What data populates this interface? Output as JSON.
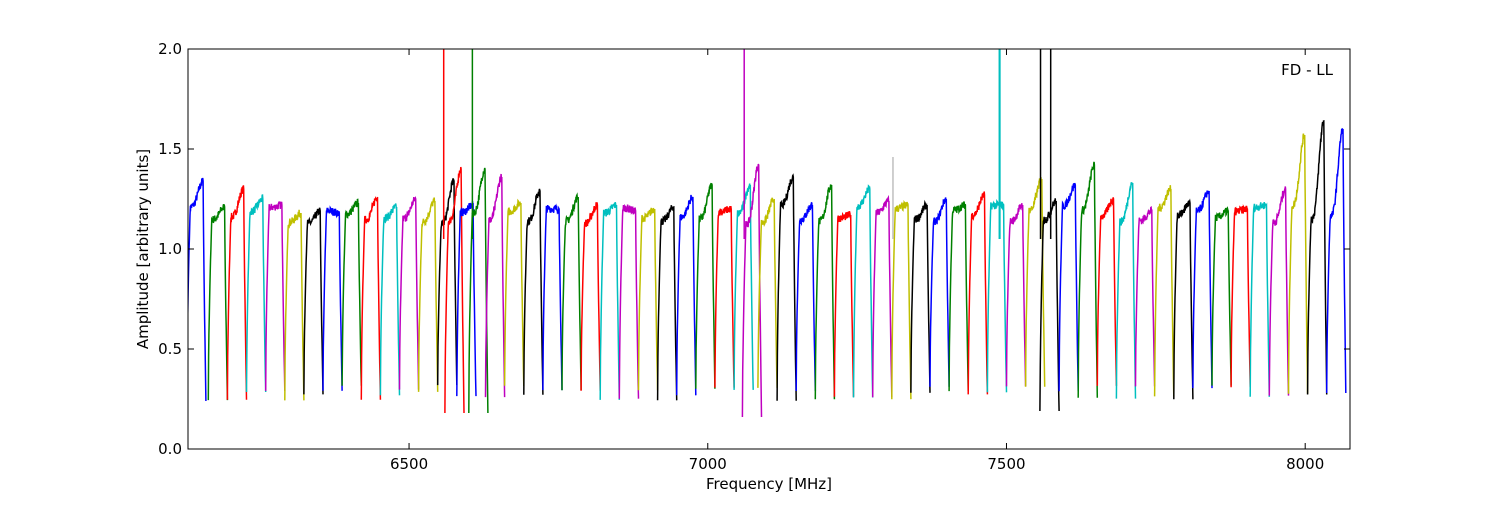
{
  "chart_data": {
    "type": "line",
    "title": "",
    "xlabel": "Frequency [MHz]",
    "ylabel": "Amplitude [arbitrary units]",
    "annotation": "FD - LL",
    "xlim": [
      6130,
      8075
    ],
    "ylim": [
      0.0,
      2.0
    ],
    "xticks": [
      6500,
      7000,
      7500,
      8000
    ],
    "xtick_labels": [
      "6500",
      "7000",
      "7500",
      "8000"
    ],
    "yticks": [
      0.0,
      0.5,
      1.0,
      1.5,
      2.0
    ],
    "ytick_labels": [
      "0.0",
      "0.5",
      "1.0",
      "1.5",
      "2.0"
    ],
    "grid": false,
    "legend": "none",
    "color_cycle": [
      "#0000ff",
      "#008000",
      "#ff0000",
      "#00bfbf",
      "#bf00bf",
      "#bfbf00",
      "#000000"
    ],
    "secondary_color": "#bfbfbf",
    "channel_width_mhz": 32,
    "channels": [
      {
        "start": 6128,
        "color": "#0000ff",
        "peak": 1.34
      },
      {
        "start": 6164,
        "color": "#008000",
        "peak": 1.21
      },
      {
        "start": 6196,
        "color": "#ff0000",
        "peak": 1.3
      },
      {
        "start": 6228,
        "color": "#00bfbf",
        "peak": 1.25
      },
      {
        "start": 6260,
        "color": "#bf00bf",
        "peak": 1.22
      },
      {
        "start": 6292,
        "color": "#bfbf00",
        "peak": 1.18
      },
      {
        "start": 6324,
        "color": "#000000",
        "peak": 1.19
      },
      {
        "start": 6356,
        "color": "#0000ff",
        "peak": 1.18
      },
      {
        "start": 6388,
        "color": "#008000",
        "peak": 1.23
      },
      {
        "start": 6420,
        "color": "#ff0000",
        "peak": 1.26
      },
      {
        "start": 6452,
        "color": "#00bfbf",
        "peak": 1.21
      },
      {
        "start": 6484,
        "color": "#bf00bf",
        "peak": 1.25
      },
      {
        "start": 6516,
        "color": "#bfbf00",
        "peak": 1.24
      },
      {
        "start": 6548,
        "color": "#000000",
        "peak": 1.34
      },
      {
        "start": 6560,
        "color": "#ff0000",
        "peak": 1.4,
        "dip": 0.18
      },
      {
        "start": 6580,
        "color": "#0000ff",
        "peak": 1.22
      },
      {
        "start": 6600,
        "color": "#008000",
        "peak": 1.4,
        "dip": 0.18
      },
      {
        "start": 6628,
        "color": "#bf00bf",
        "peak": 1.36
      },
      {
        "start": 6660,
        "color": "#bfbf00",
        "peak": 1.23
      },
      {
        "start": 6692,
        "color": "#000000",
        "peak": 1.29
      },
      {
        "start": 6724,
        "color": "#0000ff",
        "peak": 1.2
      },
      {
        "start": 6756,
        "color": "#008000",
        "peak": 1.26
      },
      {
        "start": 6788,
        "color": "#ff0000",
        "peak": 1.22
      },
      {
        "start": 6820,
        "color": "#00bfbf",
        "peak": 1.22
      },
      {
        "start": 6852,
        "color": "#bf00bf",
        "peak": 1.19
      },
      {
        "start": 6884,
        "color": "#bfbf00",
        "peak": 1.2
      },
      {
        "start": 6916,
        "color": "#000000",
        "peak": 1.21
      },
      {
        "start": 6948,
        "color": "#0000ff",
        "peak": 1.26
      },
      {
        "start": 6980,
        "color": "#008000",
        "peak": 1.32
      },
      {
        "start": 7012,
        "color": "#ff0000",
        "peak": 1.2
      },
      {
        "start": 7044,
        "color": "#00bfbf",
        "peak": 1.32
      },
      {
        "start": 7058,
        "color": "#bf00bf",
        "peak": 1.42,
        "dip": 0.16
      },
      {
        "start": 7084,
        "color": "#bfbf00",
        "peak": 1.25
      },
      {
        "start": 7116,
        "color": "#000000",
        "peak": 1.36
      },
      {
        "start": 7148,
        "color": "#0000ff",
        "peak": 1.22
      },
      {
        "start": 7180,
        "color": "#008000",
        "peak": 1.32
      },
      {
        "start": 7212,
        "color": "#ff0000",
        "peak": 1.17
      },
      {
        "start": 7244,
        "color": "#00bfbf",
        "peak": 1.3
      },
      {
        "start": 7276,
        "color": "#bf00bf",
        "peak": 1.24
      },
      {
        "start": 7308,
        "color": "#bfbf00",
        "peak": 1.22
      },
      {
        "start": 7340,
        "color": "#000000",
        "peak": 1.22
      },
      {
        "start": 7372,
        "color": "#0000ff",
        "peak": 1.25
      },
      {
        "start": 7404,
        "color": "#008000",
        "peak": 1.22
      },
      {
        "start": 7436,
        "color": "#ff0000",
        "peak": 1.27
      },
      {
        "start": 7468,
        "color": "#00bfbf",
        "peak": 1.22
      },
      {
        "start": 7500,
        "color": "#bf00bf",
        "peak": 1.22
      },
      {
        "start": 7532,
        "color": "#bfbf00",
        "peak": 1.35
      },
      {
        "start": 7556,
        "color": "#000000",
        "peak": 1.24,
        "dip": 0.19
      },
      {
        "start": 7588,
        "color": "#0000ff",
        "peak": 1.32
      },
      {
        "start": 7620,
        "color": "#008000",
        "peak": 1.42
      },
      {
        "start": 7652,
        "color": "#ff0000",
        "peak": 1.25
      },
      {
        "start": 7684,
        "color": "#00bfbf",
        "peak": 1.33
      },
      {
        "start": 7716,
        "color": "#bf00bf",
        "peak": 1.19
      },
      {
        "start": 7748,
        "color": "#bfbf00",
        "peak": 1.3
      },
      {
        "start": 7780,
        "color": "#000000",
        "peak": 1.23
      },
      {
        "start": 7812,
        "color": "#0000ff",
        "peak": 1.29
      },
      {
        "start": 7844,
        "color": "#008000",
        "peak": 1.19
      },
      {
        "start": 7876,
        "color": "#ff0000",
        "peak": 1.2
      },
      {
        "start": 7908,
        "color": "#00bfbf",
        "peak": 1.22
      },
      {
        "start": 7940,
        "color": "#bf00bf",
        "peak": 1.3
      },
      {
        "start": 7972,
        "color": "#bfbf00",
        "peak": 1.57
      },
      {
        "start": 8004,
        "color": "#000000",
        "peak": 1.64
      },
      {
        "start": 8036,
        "color": "#0000ff",
        "peak": 1.6
      }
    ],
    "spikes": [
      {
        "x": 6558,
        "y": 2.0,
        "color": "#ff0000"
      },
      {
        "x": 6606,
        "y": 2.0,
        "color": "#008000"
      },
      {
        "x": 7061,
        "y": 2.0,
        "color": "#bf00bf"
      },
      {
        "x": 7310,
        "y": 1.46,
        "color": "#bfbfbf"
      },
      {
        "x": 7488,
        "y": 2.0,
        "color": "#00bfbf"
      },
      {
        "x": 7489,
        "y": 2.0,
        "color": "#00bfbf"
      },
      {
        "x": 7557,
        "y": 2.0,
        "color": "#000000"
      },
      {
        "x": 7574,
        "y": 2.0,
        "color": "#000000"
      }
    ]
  }
}
